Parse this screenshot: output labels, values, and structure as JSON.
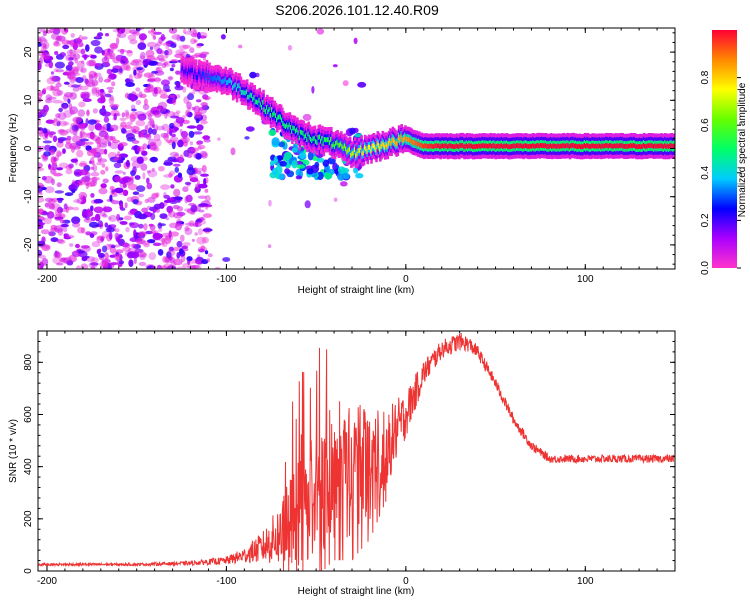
{
  "title": "S206.2026.101.12.40.R09",
  "colors": {
    "snr_line": "#ee3333",
    "axis": "#000000"
  },
  "chart_data": [
    {
      "type": "heatmap",
      "xlabel": "Height of straight line (km)",
      "ylabel": "Frequency (Hz)",
      "xlim": [
        -205,
        150
      ],
      "ylim": [
        -25,
        25
      ],
      "xticks": [
        -200,
        -100,
        0,
        100
      ],
      "yticks": [
        -20,
        -10,
        0,
        10,
        20
      ],
      "colorbar": {
        "label": "Normalized spectral amplitude",
        "range": [
          0,
          1
        ],
        "ticks": [
          "0.0",
          "0.2",
          "0.4",
          "0.6",
          "0.8"
        ],
        "colormap": [
          "#ff33cc",
          "#aa00ff",
          "#0000ff",
          "#00ccff",
          "#00ff66",
          "#66ff00",
          "#ffff00",
          "#ff8800",
          "#ff0033"
        ]
      },
      "ridge": {
        "x": [
          -125,
          -110,
          -100,
          -90,
          -80,
          -70,
          -60,
          -50,
          -40,
          -30,
          -20,
          -10,
          0,
          10,
          20,
          50,
          100,
          150
        ],
        "freq": [
          16,
          15,
          14,
          12,
          9,
          6,
          3,
          2,
          1,
          -1,
          0,
          1,
          2,
          0.5,
          0.5,
          0.5,
          0.5,
          0.5
        ],
        "amplitude": [
          0.2,
          0.3,
          0.35,
          0.45,
          0.5,
          0.5,
          0.5,
          0.5,
          0.55,
          0.7,
          0.75,
          0.8,
          0.85,
          0.95,
          1.0,
          1.0,
          1.0,
          1.0
        ]
      }
    },
    {
      "type": "line",
      "xlabel": "Height of straight line (km)",
      "ylabel": "SNR (10 * v/v)",
      "xlim": [
        -205,
        150
      ],
      "ylim": [
        0,
        920
      ],
      "xticks": [
        -200,
        -100,
        0,
        100
      ],
      "yticks": [
        0,
        200,
        400,
        600,
        800
      ],
      "series": [
        {
          "x": [
            -205,
            -150,
            -120,
            -100,
            -90,
            -80,
            -70,
            -60,
            -50,
            -40,
            -30,
            -20,
            -10,
            0,
            10,
            20,
            30,
            35,
            40,
            50,
            60,
            70,
            80,
            100,
            120,
            150
          ],
          "values": [
            25,
            25,
            30,
            40,
            60,
            90,
            140,
            230,
            300,
            340,
            380,
            420,
            480,
            600,
            760,
            850,
            880,
            870,
            840,
            720,
            580,
            480,
            430,
            430,
            430,
            430
          ],
          "noise": [
            5,
            5,
            8,
            15,
            30,
            60,
            120,
            220,
            250,
            230,
            260,
            230,
            150,
            90,
            50,
            35,
            35,
            30,
            25,
            22,
            20,
            18,
            15,
            15,
            15,
            15
          ]
        }
      ]
    }
  ]
}
